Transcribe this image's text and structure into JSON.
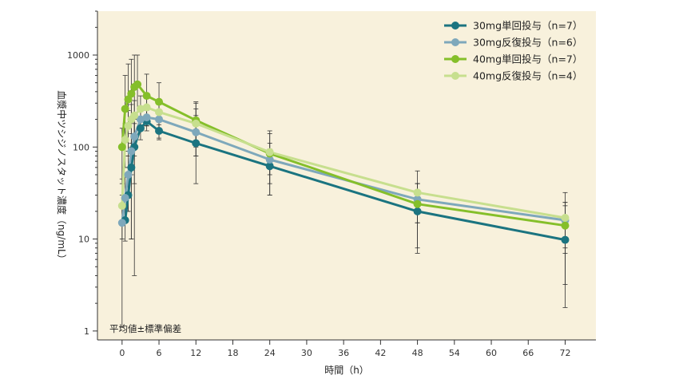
{
  "chart_data": {
    "type": "line",
    "yscale": "log",
    "xlabel": "時間（h）",
    "ylabel": "血漿中ツシジノスタット濃度（ng/mL）",
    "note": "平均値±標準偏差",
    "xlim": [
      -4,
      77
    ],
    "ylim": [
      0.8,
      3000
    ],
    "x_ticks": [
      0,
      6,
      12,
      18,
      24,
      30,
      36,
      42,
      48,
      54,
      60,
      66,
      72
    ],
    "y_ticks": [
      1,
      10,
      100,
      1000
    ],
    "y_tick_labels": [
      "1",
      "10",
      "100",
      "1000"
    ],
    "legend_position": "top-right",
    "colors": {
      "plot_background": "#f8f1dc",
      "axis": "#333333"
    },
    "series": [
      {
        "name": "30mg単回投与（n=7）",
        "color": "#1b7480",
        "points": [
          {
            "x": 0.5,
            "y": 16,
            "lo": 9.5,
            "hi": 23
          },
          {
            "x": 1,
            "y": 30,
            "lo": 20,
            "hi": 40
          },
          {
            "x": 1.5,
            "y": 60,
            "lo": 10,
            "hi": 100
          },
          {
            "x": 2,
            "y": 100,
            "lo": 40,
            "hi": 200
          },
          {
            "x": 3,
            "y": 160,
            "lo": 120,
            "hi": 200
          },
          {
            "x": 4,
            "y": 190,
            "lo": 170,
            "hi": 210
          },
          {
            "x": 6,
            "y": 150,
            "lo": 125,
            "hi": 175
          },
          {
            "x": 12,
            "y": 110,
            "lo": 40,
            "hi": 300
          },
          {
            "x": 24,
            "y": 62,
            "lo": 30,
            "hi": 95
          },
          {
            "x": 48,
            "y": 20,
            "lo": 7,
            "hi": 40
          },
          {
            "x": 72,
            "y": 9.8,
            "lo": 1.8,
            "hi": 23
          }
        ]
      },
      {
        "name": "30mg反復投与（n=6）",
        "color": "#7ea8bb",
        "points": [
          {
            "x": 0,
            "y": 15,
            "lo": 1.1,
            "hi": 30
          },
          {
            "x": 0.5,
            "y": 28,
            "lo": 15,
            "hi": 48
          },
          {
            "x": 1,
            "y": 50,
            "lo": 20,
            "hi": 80
          },
          {
            "x": 1.5,
            "y": 90,
            "lo": 50,
            "hi": 140
          },
          {
            "x": 2,
            "y": 130,
            "lo": 80,
            "hi": 180
          },
          {
            "x": 3,
            "y": 200,
            "lo": 150,
            "hi": 250
          },
          {
            "x": 4,
            "y": 210,
            "lo": 170,
            "hi": 250
          },
          {
            "x": 6,
            "y": 200,
            "lo": 160,
            "hi": 240
          },
          {
            "x": 12,
            "y": 145,
            "lo": 80,
            "hi": 220
          },
          {
            "x": 24,
            "y": 73,
            "lo": 40,
            "hi": 110
          },
          {
            "x": 48,
            "y": 27,
            "lo": 15,
            "hi": 40
          },
          {
            "x": 72,
            "y": 16,
            "lo": 7,
            "hi": 25
          }
        ]
      },
      {
        "name": "40mg単回投与（n=7）",
        "color": "#85bf2a",
        "points": [
          {
            "x": 0,
            "y": 100,
            "lo": 40,
            "hi": 160
          },
          {
            "x": 0.5,
            "y": 260,
            "lo": 60,
            "hi": 600
          },
          {
            "x": 1,
            "y": 330,
            "lo": 80,
            "hi": 800
          },
          {
            "x": 1.5,
            "y": 380,
            "lo": 10,
            "hi": 900
          },
          {
            "x": 2,
            "y": 450,
            "lo": 4,
            "hi": 1000
          },
          {
            "x": 2.5,
            "y": 480,
            "lo": 200,
            "hi": 1000
          },
          {
            "x": 4,
            "y": 360,
            "lo": 150,
            "hi": 620
          },
          {
            "x": 6,
            "y": 310,
            "lo": 120,
            "hi": 500
          },
          {
            "x": 12,
            "y": 195,
            "lo": 80,
            "hi": 310
          },
          {
            "x": 24,
            "y": 85,
            "lo": 30,
            "hi": 140
          },
          {
            "x": 48,
            "y": 24,
            "lo": 8,
            "hi": 40
          },
          {
            "x": 72,
            "y": 14,
            "lo": 3.2,
            "hi": 25
          }
        ]
      },
      {
        "name": "40mg反復投与（n=4）",
        "color": "#c7df8e",
        "points": [
          {
            "x": 0,
            "y": 23,
            "lo": 10,
            "hi": 45
          },
          {
            "x": 0.5,
            "y": 120,
            "lo": 60,
            "hi": 180
          },
          {
            "x": 1,
            "y": 170,
            "lo": 90,
            "hi": 250
          },
          {
            "x": 1.5,
            "y": 200,
            "lo": 110,
            "hi": 290
          },
          {
            "x": 2,
            "y": 220,
            "lo": 130,
            "hi": 320
          },
          {
            "x": 3,
            "y": 260,
            "lo": 170,
            "hi": 360
          },
          {
            "x": 4,
            "y": 270,
            "lo": 170,
            "hi": 380
          },
          {
            "x": 6,
            "y": 240,
            "lo": 160,
            "hi": 330
          },
          {
            "x": 12,
            "y": 180,
            "lo": 100,
            "hi": 260
          },
          {
            "x": 24,
            "y": 88,
            "lo": 50,
            "hi": 150
          },
          {
            "x": 48,
            "y": 32,
            "lo": 15,
            "hi": 55
          },
          {
            "x": 72,
            "y": 17,
            "lo": 8,
            "hi": 32
          }
        ]
      }
    ]
  }
}
